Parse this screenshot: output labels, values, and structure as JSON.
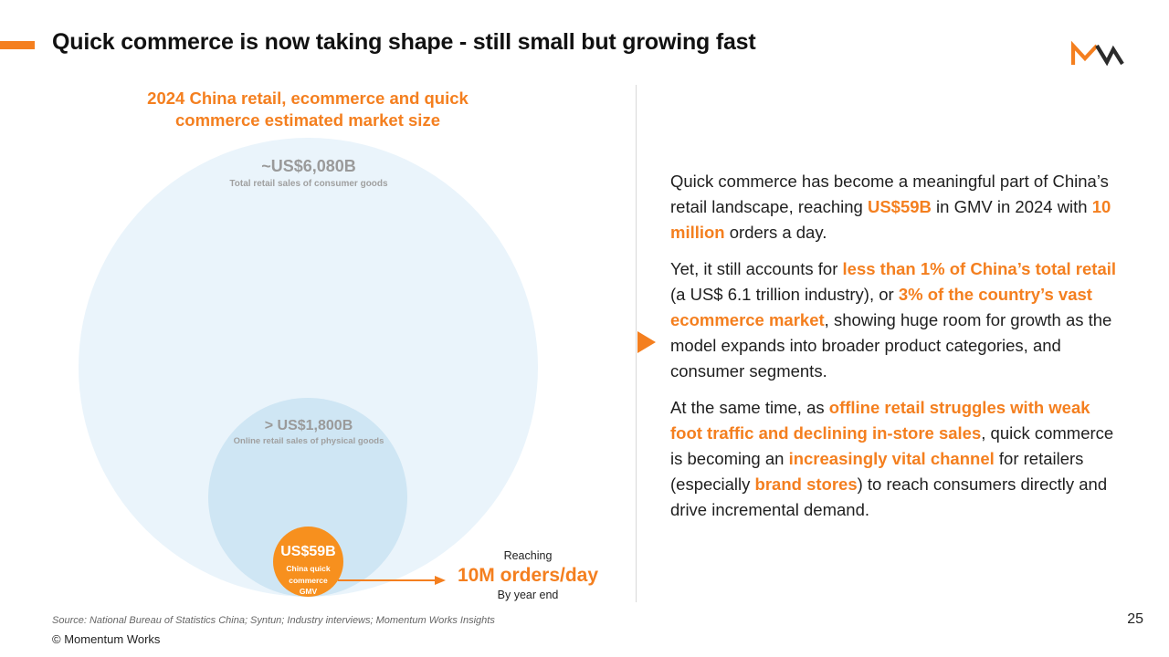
{
  "slide": {
    "title": "Quick commerce is now taking shape - still small but growing fast",
    "page_number": "25",
    "source": "Source: National Bureau of Statistics China; Syntun; Industry interviews; Momentum Works Insights",
    "copyright": "© Momentum Works",
    "logo_icon": "mw-logo-icon"
  },
  "colors": {
    "accent": "#F47F1F",
    "total_circle": "#EAF4FB",
    "online_circle": "#CFE6F4",
    "quick_circle": "#F7901E"
  },
  "diagram": {
    "title": "2024 China retail, ecommerce and quick commerce estimated market size",
    "bubbles": [
      {
        "value": "~US$6,080B",
        "label": "Total retail sales of consumer goods"
      },
      {
        "value": "> US$1,800B",
        "label": "Online retail sales of physical goods"
      },
      {
        "value": "US$59B",
        "label_lines": [
          "China quick",
          "commerce",
          "GMV"
        ]
      }
    ],
    "callout": {
      "pre": "Reaching",
      "value": "10M orders/day",
      "post": "By year end"
    }
  },
  "text": {
    "paragraphs": [
      [
        {
          "t": "Quick commerce has become a meaningful part of China’s retail landscape, reaching "
        },
        {
          "t": "US$59B",
          "hl": true
        },
        {
          "t": " in GMV in 2024 with "
        },
        {
          "t": "10 million",
          "hl": true
        },
        {
          "t": " orders a day."
        }
      ],
      [
        {
          "t": "Yet, it still accounts for "
        },
        {
          "t": "less than 1% of China’s total retail",
          "hl": true
        },
        {
          "t": " (a US$ 6.1 trillion industry), or "
        },
        {
          "t": "3% of the country’s vast ecommerce market",
          "hl": true
        },
        {
          "t": ",  showing huge room for growth as the model expands into broader product categories, and consumer segments."
        }
      ],
      [
        {
          "t": "At the same time, as "
        },
        {
          "t": "offline retail struggles with weak foot traffic and declining in-store sales",
          "hl": true
        },
        {
          "t": ", quick commerce is becoming an "
        },
        {
          "t": "increasingly vital channel",
          "hl": true
        },
        {
          "t": " for retailers (especially "
        },
        {
          "t": "brand stores",
          "hl": true
        },
        {
          "t": ") to reach consumers directly and drive incremental demand."
        }
      ]
    ]
  }
}
